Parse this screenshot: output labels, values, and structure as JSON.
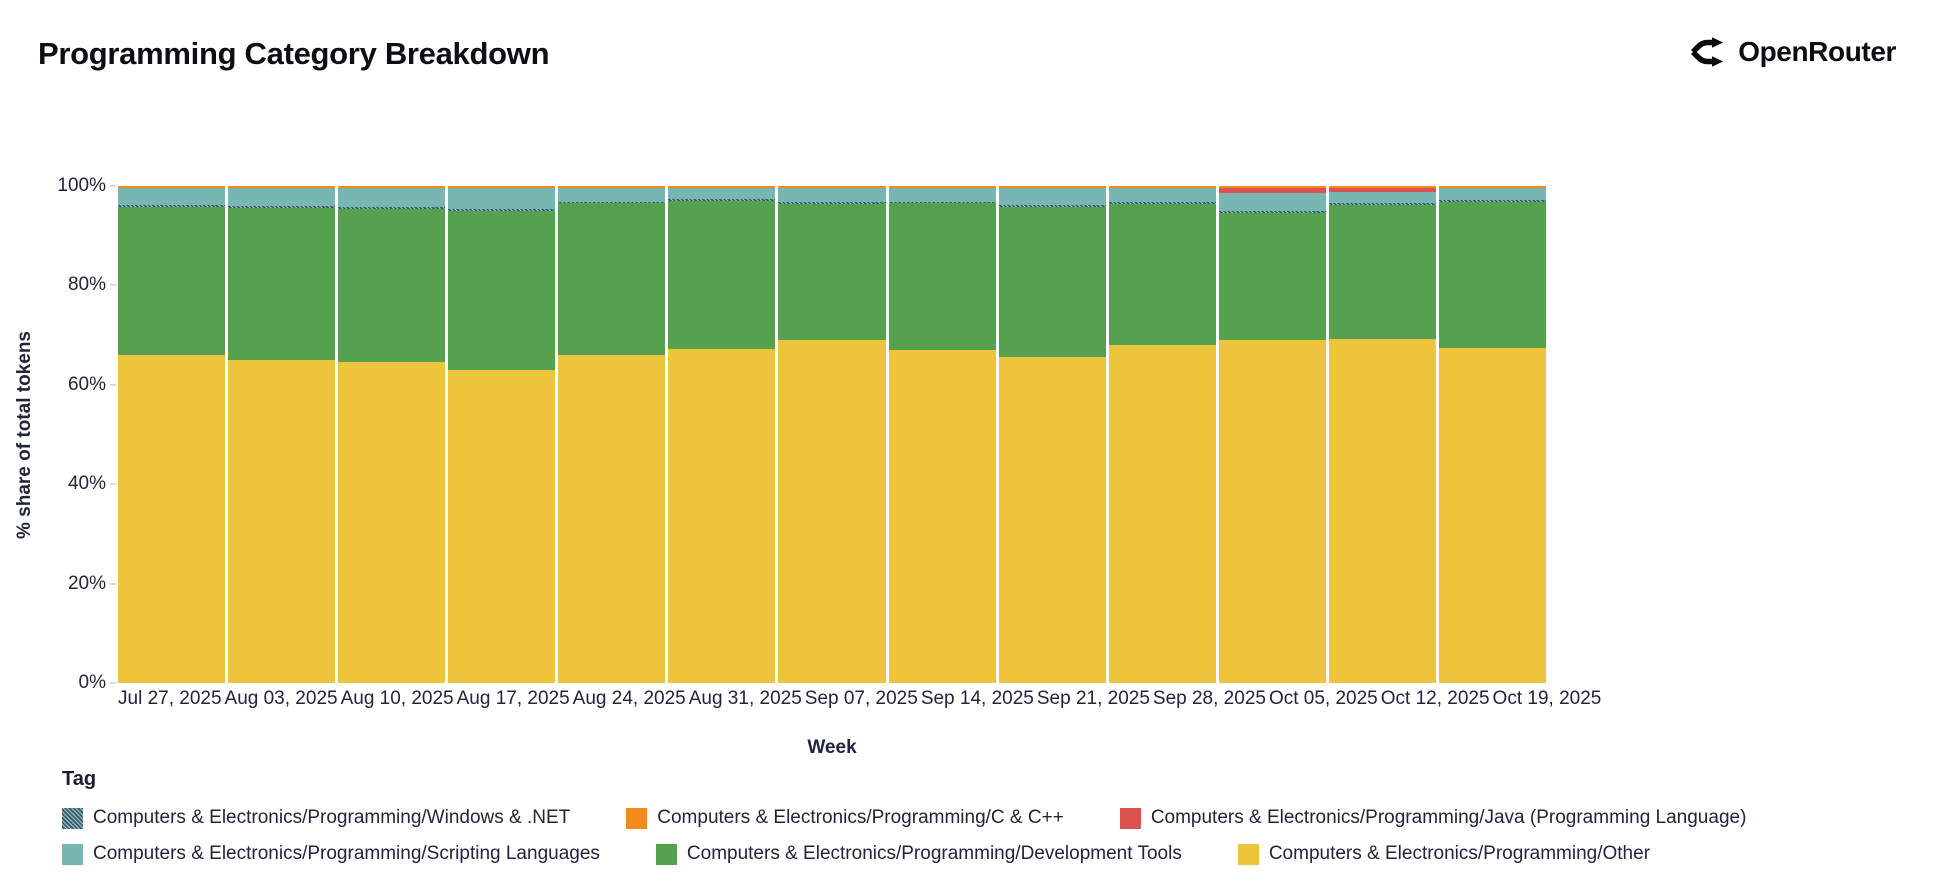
{
  "header": {
    "title": "Programming Category Breakdown",
    "brand": "OpenRouter"
  },
  "chart_data": {
    "type": "bar",
    "stacked": true,
    "stack_unit": "%",
    "title": "Programming Category Breakdown",
    "xlabel": "Week",
    "ylabel": "% share of total tokens",
    "ylim": [
      0,
      100
    ],
    "yticks": [
      "0%",
      "20%",
      "40%",
      "60%",
      "80%",
      "100%"
    ],
    "grid": false,
    "legend": {
      "title": "Tag",
      "position": "bottom"
    },
    "categories": [
      "Jul 27, 2025",
      "Aug 03, 2025",
      "Aug 10, 2025",
      "Aug 17, 2025",
      "Aug 24, 2025",
      "Aug 31, 2025",
      "Sep 07, 2025",
      "Sep 14, 2025",
      "Sep 21, 2025",
      "Sep 28, 2025",
      "Oct 05, 2025",
      "Oct 12, 2025",
      "Oct 19, 2025"
    ],
    "series": [
      {
        "key": "programming-other",
        "name": "Computers & Electronics/Programming/Other",
        "color": "#ecc53d",
        "values": [
          66.0,
          65.0,
          64.5,
          63.0,
          66.0,
          67.2,
          69.0,
          67.0,
          65.5,
          68.0,
          69.0,
          69.3,
          67.4
        ]
      },
      {
        "key": "development-tools",
        "name": "Computers & Electronics/Programming/Development Tools",
        "color": "#56a14e",
        "values": [
          29.8,
          30.6,
          30.9,
          32.0,
          30.5,
          29.8,
          27.4,
          29.6,
          30.3,
          28.4,
          25.6,
          26.9,
          29.4
        ]
      },
      {
        "key": "windows-dotnet",
        "name": "Computers & Electronics/Programming/Windows & .NET",
        "color": "#3f5e6b",
        "pattern": "hatch",
        "values": [
          0.4,
          0.4,
          0.4,
          0.4,
          0.3,
          0.3,
          0.3,
          0.2,
          0.3,
          0.4,
          0.3,
          0.3,
          0.3
        ]
      },
      {
        "key": "scripting-languages",
        "name": "Computers & Electronics/Programming/Scripting Languages",
        "color": "#76b7b2",
        "values": [
          3.4,
          3.6,
          3.8,
          4.3,
          2.9,
          2.4,
          3.0,
          2.9,
          3.6,
          2.9,
          3.8,
          2.4,
          2.6
        ]
      },
      {
        "key": "java",
        "name": "Computers & Electronics/Programming/Java (Programming Language)",
        "color": "#d9544f",
        "values": [
          0,
          0,
          0,
          0,
          0,
          0,
          0,
          0,
          0,
          0,
          1.0,
          0.8,
          0
        ]
      },
      {
        "key": "c-cpp",
        "name": "Computers & Electronics/Programming/C & C++",
        "color": "#f5891d",
        "values": [
          0.4,
          0.4,
          0.4,
          0.3,
          0.3,
          0.3,
          0.3,
          0.3,
          0.3,
          0.3,
          0.3,
          0.3,
          0.3
        ]
      }
    ],
    "legend_order": [
      2,
      5,
      4,
      3,
      1,
      0
    ]
  }
}
